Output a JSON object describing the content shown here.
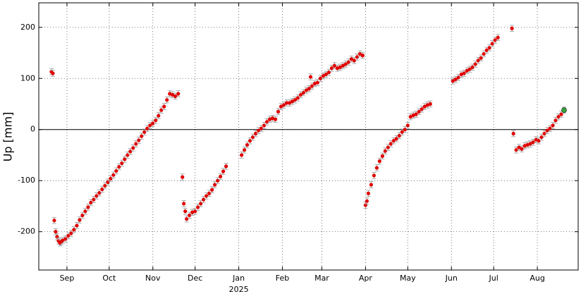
{
  "chart_data": {
    "type": "scatter",
    "ylabel": "Up [mm]",
    "year_label": "2025",
    "x": [
      -11,
      -10,
      -9,
      -8,
      -7,
      -6,
      -5,
      -4,
      -3,
      -1,
      1,
      3,
      5,
      7,
      9,
      11,
      13,
      15,
      17,
      19,
      21,
      23,
      25,
      27,
      29,
      31,
      33,
      35,
      37,
      39,
      41,
      43,
      45,
      47,
      49,
      51,
      53,
      55,
      57,
      59,
      61,
      63,
      65,
      67,
      69,
      71,
      73,
      75,
      77,
      79,
      82,
      83,
      84,
      85,
      87,
      89,
      91,
      93,
      95,
      97,
      99,
      101,
      103,
      105,
      107,
      109,
      111,
      113,
      124,
      126,
      128,
      130,
      132,
      134,
      136,
      138,
      140,
      142,
      144,
      146,
      148,
      150,
      152,
      154,
      156,
      158,
      160,
      162,
      164,
      166,
      168,
      170,
      172,
      173,
      174,
      176,
      178,
      180,
      182,
      184,
      186,
      188,
      190,
      192,
      194,
      196,
      198,
      200,
      202,
      204,
      206,
      208,
      210,
      212,
      213,
      214,
      216,
      218,
      220,
      222,
      224,
      226,
      228,
      230,
      232,
      234,
      236,
      238,
      240,
      242,
      244,
      246,
      248,
      250,
      252,
      254,
      256,
      258,
      274,
      276,
      278,
      280,
      282,
      284,
      286,
      288,
      290,
      292,
      294,
      296,
      298,
      300,
      302,
      304,
      306,
      316,
      317,
      319,
      321,
      323,
      325,
      327,
      329,
      331,
      333,
      335,
      337,
      339,
      341,
      343,
      345,
      347,
      349,
      351,
      353
    ],
    "values": [
      113,
      110,
      -178,
      -200,
      -210,
      -218,
      -222,
      -220,
      -217,
      -214,
      -208,
      -203,
      -196,
      -188,
      -177,
      -168,
      -160,
      -152,
      -143,
      -137,
      -130,
      -124,
      -117,
      -110,
      -103,
      -96,
      -89,
      -81,
      -73,
      -66,
      -58,
      -50,
      -43,
      -36,
      -28,
      -21,
      -13,
      -5,
      2,
      8,
      12,
      18,
      27,
      38,
      45,
      58,
      70,
      68,
      65,
      70,
      -93,
      -145,
      -160,
      -175,
      -168,
      -162,
      -160,
      -152,
      -145,
      -137,
      -130,
      -125,
      -118,
      -108,
      -100,
      -92,
      -82,
      -72,
      -50,
      -40,
      -30,
      -22,
      -15,
      -8,
      -2,
      2,
      8,
      15,
      20,
      22,
      20,
      35,
      45,
      48,
      52,
      52,
      55,
      58,
      62,
      68,
      72,
      77,
      80,
      103,
      85,
      90,
      92,
      100,
      105,
      108,
      112,
      120,
      125,
      120,
      122,
      125,
      128,
      132,
      138,
      135,
      142,
      148,
      145,
      -148,
      -140,
      -125,
      -108,
      -90,
      -75,
      -62,
      -52,
      -42,
      -35,
      -28,
      -22,
      -18,
      -12,
      -5,
      0,
      8,
      25,
      28,
      30,
      35,
      40,
      45,
      48,
      50,
      95,
      98,
      102,
      108,
      110,
      115,
      118,
      122,
      128,
      135,
      140,
      148,
      155,
      160,
      168,
      175,
      180,
      198,
      -8,
      -40,
      -35,
      -38,
      -32,
      -30,
      -28,
      -25,
      -20,
      -22,
      -15,
      -8,
      -2,
      2,
      8,
      18,
      25,
      30,
      38
    ],
    "error": 6,
    "color": "#e00000",
    "last_color": "#3aa33a",
    "xlim": [
      -20,
      363
    ],
    "ylim": [
      -275,
      248
    ],
    "xticks": [
      {
        "value": 0,
        "label": "Sep"
      },
      {
        "value": 30,
        "label": "Oct"
      },
      {
        "value": 61,
        "label": "Nov"
      },
      {
        "value": 91,
        "label": "Dec"
      },
      {
        "value": 122,
        "label": "Jan"
      },
      {
        "value": 153,
        "label": "Feb"
      },
      {
        "value": 181,
        "label": "Mar"
      },
      {
        "value": 212,
        "label": "Apr"
      },
      {
        "value": 242,
        "label": "May"
      },
      {
        "value": 273,
        "label": "Jun"
      },
      {
        "value": 303,
        "label": "Jul"
      },
      {
        "value": 334,
        "label": "Aug"
      }
    ],
    "yticks": [
      -200,
      -100,
      0,
      100,
      200
    ],
    "grid": true,
    "zero_line": 0
  }
}
